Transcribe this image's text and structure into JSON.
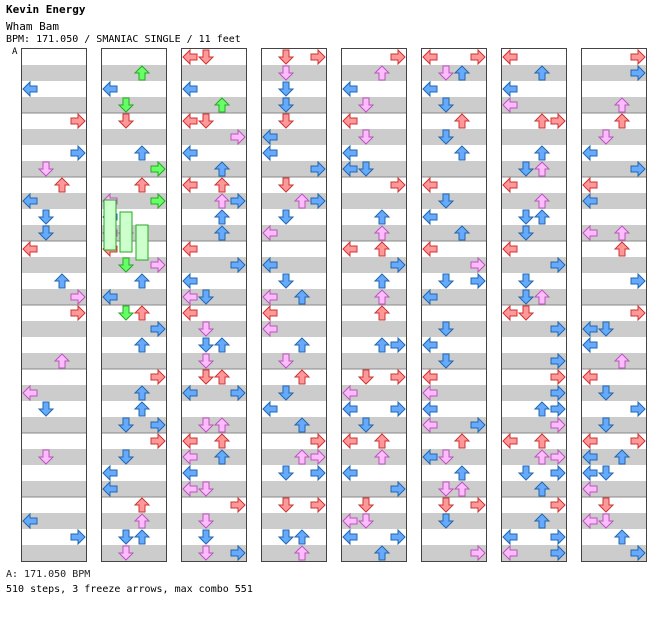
{
  "header": {
    "artist": "Kevin Energy",
    "title": "Wham Bam",
    "meta": "BPM: 171.050 / SMANIAC SINGLE / 11 feet",
    "bpm_marker": "A"
  },
  "footer": {
    "bpm_legend": "A: 171.050 BPM",
    "stats": "510 steps, 3 freeze arrows, max combo 551"
  },
  "colors": {
    "band_gray": "#cccccc",
    "border": "#444444",
    "red": "#ff9999",
    "red_stroke": "#cc3333",
    "blue": "#66aaff",
    "blue_stroke": "#2266aa",
    "pink": "#ffbbff",
    "pink_stroke": "#bb55bb",
    "green": "#66ff66",
    "green_stroke": "#22aa22",
    "freeze": "#ccffcc"
  },
  "icons": [
    "left-arrow-icon",
    "down-arrow-icon",
    "up-arrow-icon",
    "right-arrow-icon",
    "freeze-arrow-icon"
  ]
}
